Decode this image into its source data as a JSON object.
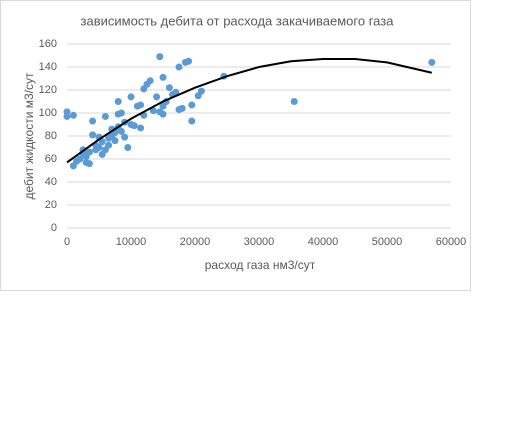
{
  "chart_data": {
    "type": "scatter",
    "title": "зависимость дебита от расхода закачиваемого газа",
    "x_label": "расход газа нм3/сут",
    "y_label": "дебит жидкости м3/сут",
    "xlim": [
      0,
      60000
    ],
    "xticks": [
      0,
      10000,
      20000,
      30000,
      40000,
      50000,
      60000
    ],
    "ylim": [
      0,
      160
    ],
    "yticks": [
      0,
      20,
      40,
      60,
      80,
      100,
      120,
      140,
      160
    ],
    "grid": true,
    "series": [
      {
        "color": "#5b9bd5",
        "x": [
          0,
          0,
          1000,
          1000,
          1500,
          2000,
          2500,
          2500,
          3000,
          3000,
          3500,
          3500,
          4000,
          4000,
          4500,
          4500,
          5000,
          5000,
          5500,
          5500,
          6000,
          6000,
          6500,
          6500,
          7000,
          7000,
          7500,
          7500,
          8000,
          8000,
          8000,
          8500,
          8500,
          9000,
          9000,
          9500,
          10000,
          10000,
          10500,
          11000,
          11500,
          11500,
          12000,
          12000,
          12500,
          13000,
          13500,
          14000,
          14500,
          14500,
          15000,
          15000,
          15000,
          15500,
          16000,
          16500,
          17000,
          17500,
          17500,
          18000,
          18500,
          19000,
          19500,
          19500,
          20500,
          21000,
          24500,
          35500,
          57000
        ],
        "y": [
          101,
          97,
          98,
          54,
          58,
          60,
          65,
          68,
          57,
          62,
          56,
          66,
          93,
          81,
          68,
          72,
          79,
          70,
          64,
          75,
          97,
          68,
          72,
          78,
          86,
          80,
          83,
          76,
          110,
          99,
          88,
          100,
          84,
          79,
          92,
          70,
          114,
          90,
          89,
          106,
          107,
          87,
          121,
          98,
          125,
          128,
          102,
          114,
          149,
          101,
          131,
          99,
          106,
          110,
          122,
          116,
          118,
          140,
          103,
          104,
          144,
          145,
          93,
          107,
          115,
          119,
          132,
          110,
          144
        ]
      }
    ],
    "trend": {
      "color": "#000000",
      "x": [
        0,
        5000,
        10000,
        15000,
        20000,
        25000,
        30000,
        35000,
        40000,
        45000,
        50000,
        57000
      ],
      "y": [
        57,
        77,
        95,
        110,
        122,
        132,
        140,
        145,
        147,
        147,
        144,
        135
      ]
    }
  }
}
